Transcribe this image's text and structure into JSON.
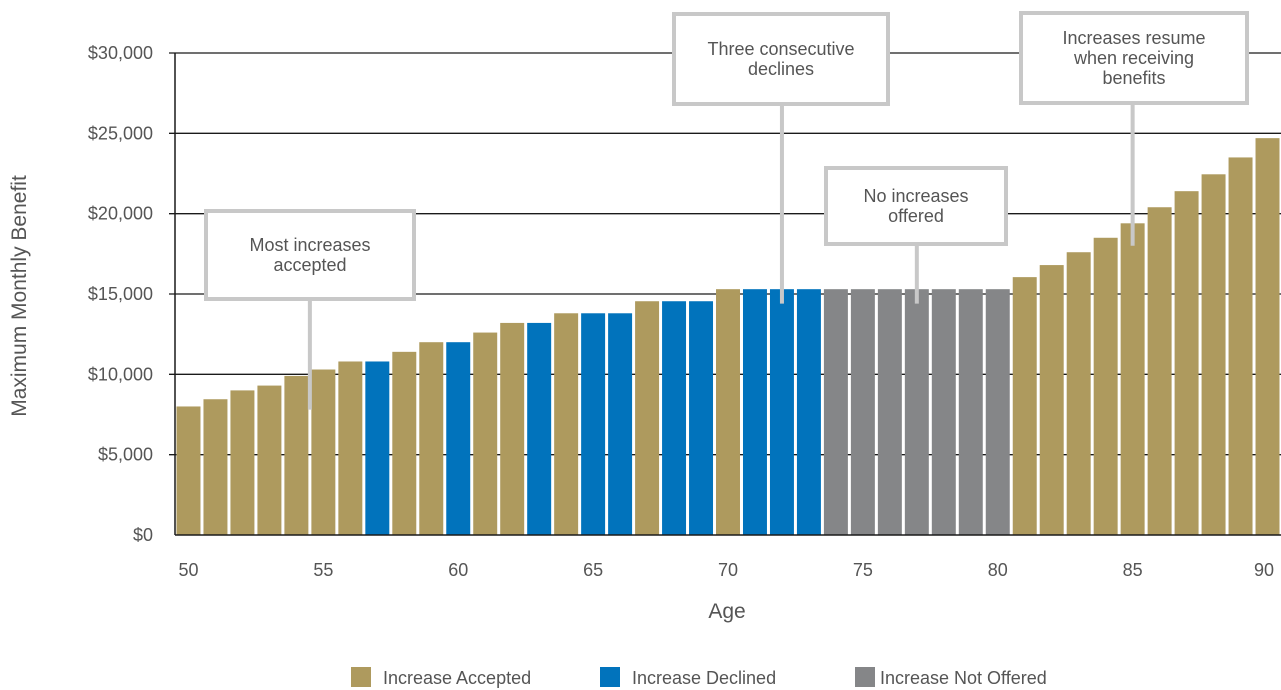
{
  "colors": {
    "accepted": "#ae9a5e",
    "declined": "#0173bc",
    "not_offered": "#858688",
    "gridline": "#1a1a1a",
    "callout_border": "#c8c8c8",
    "text": "#555555"
  },
  "chart_data": {
    "type": "bar",
    "xlabel": "Age",
    "ylabel": "Maximum Monthly Benefit",
    "ylim": [
      0,
      30000
    ],
    "xlim": [
      49.5,
      90.5
    ],
    "y_ticks": [
      "$0",
      "$5,000",
      "$10,000",
      "$15,000",
      "$20,000",
      "$25,000",
      "$30,000"
    ],
    "x_ticks": [
      "50",
      "55",
      "60",
      "65",
      "70",
      "75",
      "80",
      "85",
      "90"
    ],
    "grid": true,
    "legend_position": "bottom-center",
    "legend": [
      {
        "key": "A",
        "label": "Increase Accepted"
      },
      {
        "key": "D",
        "label": "Increase Declined"
      },
      {
        "key": "N",
        "label": "Increase Not Offered"
      }
    ],
    "ages": [
      50,
      51,
      52,
      53,
      54,
      55,
      56,
      57,
      58,
      59,
      60,
      61,
      62,
      63,
      64,
      65,
      66,
      67,
      68,
      69,
      70,
      71,
      72,
      73,
      74,
      75,
      76,
      77,
      78,
      79,
      80,
      81,
      82,
      83,
      84,
      85,
      86,
      87,
      88,
      89,
      90
    ],
    "values": [
      8000,
      8450,
      9000,
      9300,
      9900,
      10300,
      10800,
      10800,
      11400,
      12000,
      12000,
      12600,
      13200,
      13200,
      13800,
      13800,
      13800,
      14550,
      14550,
      14550,
      15300,
      15300,
      15300,
      15300,
      15300,
      15300,
      15300,
      15300,
      15300,
      15300,
      15300,
      16050,
      16800,
      17600,
      18500,
      19400,
      20400,
      21400,
      22450,
      23500,
      24700
    ],
    "status": [
      "A",
      "A",
      "A",
      "A",
      "A",
      "A",
      "A",
      "D",
      "A",
      "A",
      "D",
      "A",
      "A",
      "D",
      "A",
      "D",
      "D",
      "A",
      "D",
      "D",
      "A",
      "D",
      "D",
      "D",
      "N",
      "N",
      "N",
      "N",
      "N",
      "N",
      "N",
      "A",
      "A",
      "A",
      "A",
      "A",
      "A",
      "A",
      "A",
      "A",
      "A"
    ],
    "annotations": [
      {
        "id": "most-accepted",
        "lines": [
          "Most increases",
          "accepted"
        ],
        "age": 54.5,
        "value": 7800
      },
      {
        "id": "three-declines",
        "lines": [
          "Three consecutive",
          "declines"
        ],
        "age": 72.0,
        "value": 14400
      },
      {
        "id": "no-increases",
        "lines": [
          "No increases",
          "offered"
        ],
        "age": 77.0,
        "value": 14400
      },
      {
        "id": "increases-resume",
        "lines": [
          "Increases resume",
          "when receiving",
          "benefits"
        ],
        "age": 85.0,
        "value": 18000
      }
    ]
  }
}
